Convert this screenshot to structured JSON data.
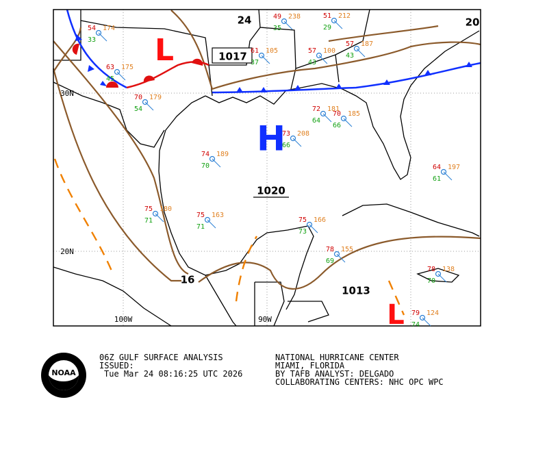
{
  "map": {
    "pressure_labels": [
      "24",
      "1017",
      "1020",
      "1013",
      "16",
      "20"
    ],
    "centers": [
      "H",
      "L",
      "L"
    ],
    "axis_labels": [
      "30N",
      "20N",
      "100W",
      "90W"
    ],
    "stations": [
      {
        "temp": "54",
        "pressure": "174",
        "dew": "33"
      },
      {
        "temp": "63",
        "pressure": "175",
        "dew": "45"
      },
      {
        "temp": "70",
        "pressure": "179",
        "dew": "54"
      },
      {
        "temp": "74",
        "pressure": "189",
        "dew": "70"
      },
      {
        "temp": "75",
        "pressure": "180",
        "dew": "71"
      },
      {
        "temp": "75",
        "pressure": "163",
        "dew": "71"
      },
      {
        "temp": "75",
        "pressure": "166",
        "dew": "73"
      },
      {
        "temp": "78",
        "pressure": "155",
        "dew": "69"
      },
      {
        "temp": "78",
        "pressure": "138",
        "dew": "70"
      },
      {
        "temp": "73",
        "pressure": "208",
        "dew": "66"
      },
      {
        "temp": "72",
        "pressure": "181",
        "dew": "64"
      },
      {
        "temp": "70",
        "pressure": "185",
        "dew": "66"
      },
      {
        "temp": "61",
        "pressure": "105",
        "dew": "37"
      },
      {
        "temp": "57",
        "pressure": "100",
        "dew": "43"
      },
      {
        "temp": "57",
        "pressure": "187",
        "dew": "43"
      },
      {
        "temp": "49",
        "pressure": "238",
        "dew": "35"
      },
      {
        "temp": "51",
        "pressure": "212",
        "dew": "29"
      },
      {
        "temp": "64",
        "pressure": "197",
        "dew": "61"
      },
      {
        "temp": "79",
        "pressure": "124",
        "dew": "74"
      }
    ]
  },
  "footer": {
    "title": "06Z GULF SURFACE ANALYSIS",
    "issued": "ISSUED:",
    "time": "Tue Mar 24 08:16:25 UTC 2026",
    "center": "NATIONAL HURRICANE CENTER",
    "city": "MIAMI, FLORIDA",
    "analyst": "BY TAFB ANALYST: DELGADO",
    "collab": "COLLABORATING CENTERS: NHC OPC WPC",
    "logo": "NOAA"
  }
}
